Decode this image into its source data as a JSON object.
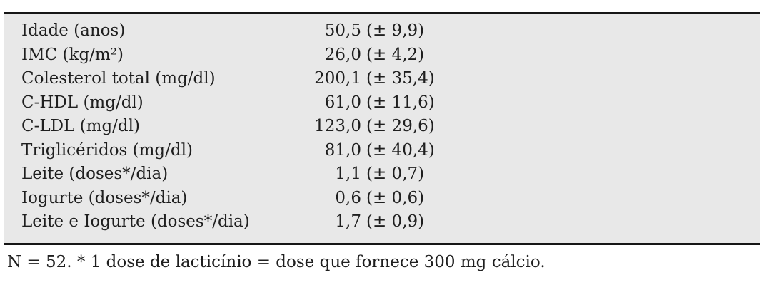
{
  "table": {
    "rows": [
      {
        "label": "Idade (anos)",
        "value": "50,5",
        "sd": "(± 9,9)"
      },
      {
        "label": "IMC (kg/m²)",
        "value": "26,0",
        "sd": "(± 4,2)"
      },
      {
        "label": "Colesterol total (mg/dl)",
        "value": "200,1",
        "sd": "(± 35,4)"
      },
      {
        "label": "C-HDL (mg/dl)",
        "value": "61,0",
        "sd": "(± 11,6)"
      },
      {
        "label": "C-LDL (mg/dl)",
        "value": "123,0",
        "sd": "(± 29,6)"
      },
      {
        "label": "Triglicéridos (mg/dl)",
        "value": "81,0",
        "sd": "(± 40,4)"
      },
      {
        "label": "Leite (doses*/dia)",
        "value": "1,1",
        "sd": "(± 0,7)"
      },
      {
        "label": "Iogurte (doses*/dia)",
        "value": "0,6",
        "sd": "(± 0,6)"
      },
      {
        "label": "Leite e Iogurte (doses*/dia)",
        "value": "1,7",
        "sd": "(± 0,9)"
      }
    ],
    "footnote": "N = 52. * 1 dose de lacticínio = dose que fornece 300 mg cálcio."
  },
  "colors": {
    "table_background": "#e8e8e8",
    "rule": "#161616",
    "text": "#1f1f1f"
  }
}
